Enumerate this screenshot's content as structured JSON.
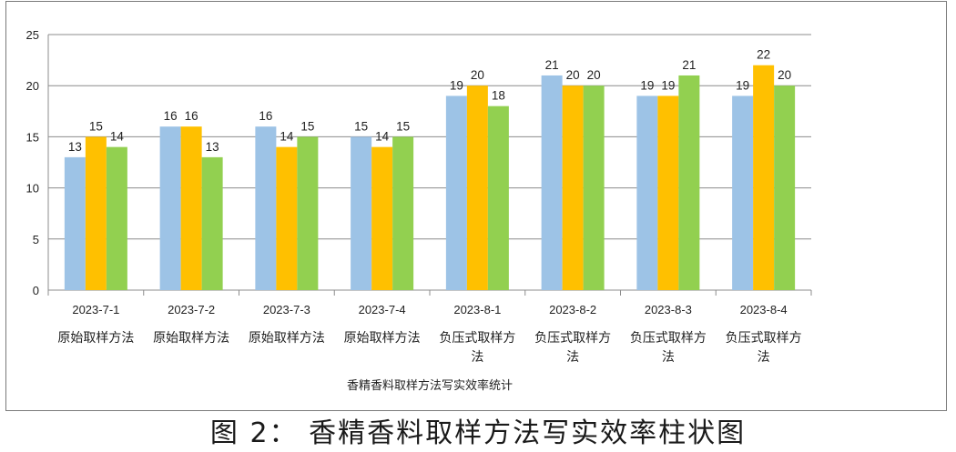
{
  "caption": "图 2： 香精香料取样方法写实效率柱状图",
  "chart_data": {
    "type": "bar",
    "categories": [
      {
        "date": "2023-7-1",
        "method": [
          "原始取样方法"
        ]
      },
      {
        "date": "2023-7-2",
        "method": [
          "原始取样方法"
        ]
      },
      {
        "date": "2023-7-3",
        "method": [
          "原始取样方法"
        ]
      },
      {
        "date": "2023-7-4",
        "method": [
          "原始取样方法"
        ]
      },
      {
        "date": "2023-8-1",
        "method": [
          "负压式取样方",
          "法"
        ]
      },
      {
        "date": "2023-8-2",
        "method": [
          "负压式取样方",
          "法"
        ]
      },
      {
        "date": "2023-8-3",
        "method": [
          "负压式取样方",
          "法"
        ]
      },
      {
        "date": "2023-8-4",
        "method": [
          "负压式取样方",
          "法"
        ]
      }
    ],
    "series": [
      {
        "color": "#9dc3e6",
        "values": [
          13,
          16,
          16,
          15,
          19,
          21,
          19,
          19
        ]
      },
      {
        "color": "#ffc000",
        "values": [
          15,
          16,
          14,
          14,
          20,
          20,
          19,
          22
        ]
      },
      {
        "color": "#92d050",
        "values": [
          14,
          13,
          15,
          15,
          18,
          20,
          21,
          20
        ]
      }
    ],
    "xlabel": "香精香料取样方法写实效率统计",
    "ylabel": "",
    "ylim": [
      0,
      25
    ],
    "yticks": [
      0,
      5,
      10,
      15,
      20,
      25
    ],
    "grid": true,
    "legend": "none"
  }
}
